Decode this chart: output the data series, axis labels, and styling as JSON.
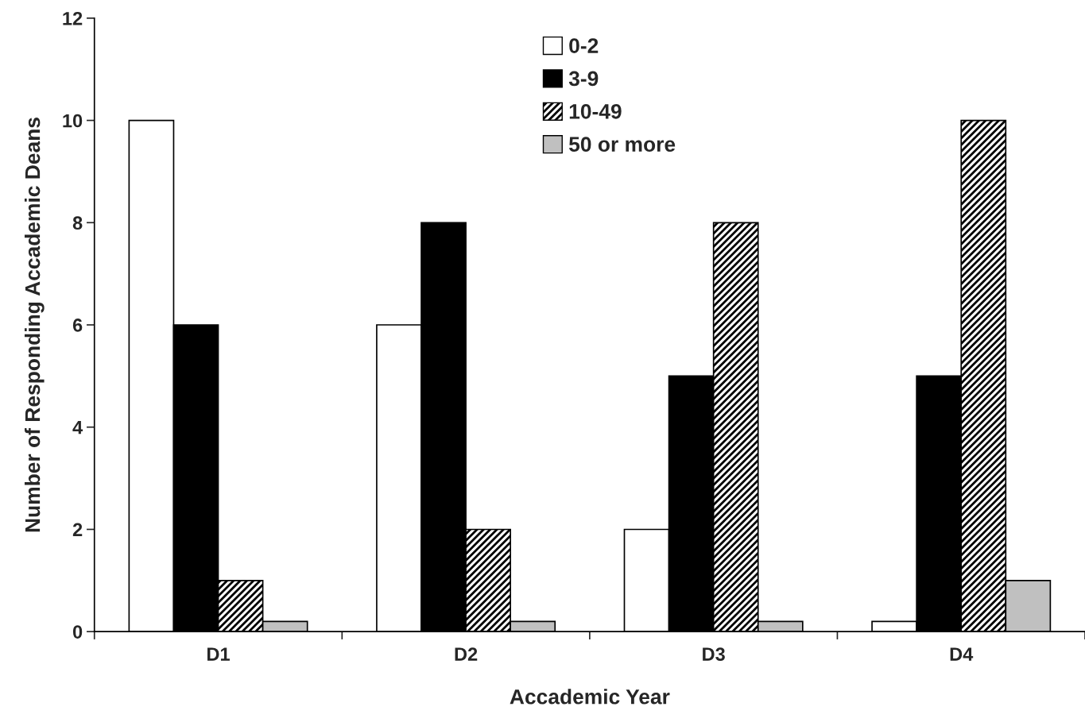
{
  "chart_data": {
    "type": "bar",
    "xlabel": "Accademic Year",
    "ylabel": "Number of Responding Accademic Deans",
    "categories": [
      "D1",
      "D2",
      "D3",
      "D4"
    ],
    "series": [
      {
        "name": "0-2",
        "color": "#ffffff",
        "values": [
          10,
          6,
          2,
          0.2
        ]
      },
      {
        "name": "3-9",
        "color": "#000000",
        "values": [
          6,
          8,
          5,
          5
        ]
      },
      {
        "name": "10-49",
        "color": "#000000",
        "values": [
          1,
          2,
          8,
          10
        ]
      },
      {
        "name": "50 or more",
        "color": "#c0c0c0",
        "values": [
          0.2,
          0.2,
          0.2,
          1
        ]
      }
    ],
    "ylim": [
      0,
      12
    ],
    "yticks": [
      0,
      2,
      4,
      6,
      8,
      10,
      12
    ],
    "grid": false,
    "legend": "top"
  }
}
